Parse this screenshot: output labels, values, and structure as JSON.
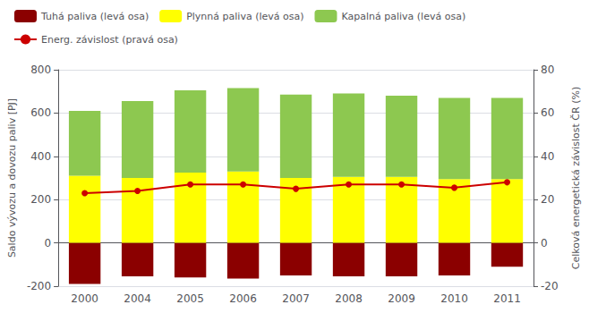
{
  "chart_data": {
    "type": "bar",
    "stacked": true,
    "categories": [
      "2000",
      "2004",
      "2005",
      "2006",
      "2007",
      "2008",
      "2009",
      "2010",
      "2011"
    ],
    "series": [
      {
        "name": "Tuhá paliva (levá osa)",
        "color": "#8B0000",
        "type": "bar",
        "values": [
          -190,
          -155,
          -160,
          -165,
          -150,
          -155,
          -155,
          -150,
          -110
        ]
      },
      {
        "name": "Plynná paliva (levá osa)",
        "color": "#FFFF00",
        "type": "bar",
        "values": [
          310,
          300,
          325,
          330,
          300,
          305,
          305,
          295,
          295
        ]
      },
      {
        "name": "Kapalná paliva (levá osa)",
        "color": "#8DC850",
        "type": "bar",
        "values": [
          300,
          355,
          380,
          385,
          385,
          385,
          375,
          375,
          375
        ]
      },
      {
        "name": "Energ. závislost (pravá osa)",
        "color": "#CC0000",
        "type": "line",
        "marker": "circle",
        "axis": "y2",
        "values": [
          23,
          24,
          27,
          27,
          25,
          27,
          27,
          25.5,
          28
        ]
      }
    ],
    "ylabel": "Saldo vývozu a dovozu paliv [PJ]",
    "y2label": "Celková energetická závislost ČR (%)",
    "ylim": [
      -200,
      800
    ],
    "yticks": [
      -200,
      0,
      200,
      400,
      600,
      800
    ],
    "y2lim": [
      -20,
      80
    ],
    "y2ticks": [
      -20,
      0,
      20,
      40,
      60,
      80
    ],
    "grid": true,
    "legend": "upper left"
  }
}
